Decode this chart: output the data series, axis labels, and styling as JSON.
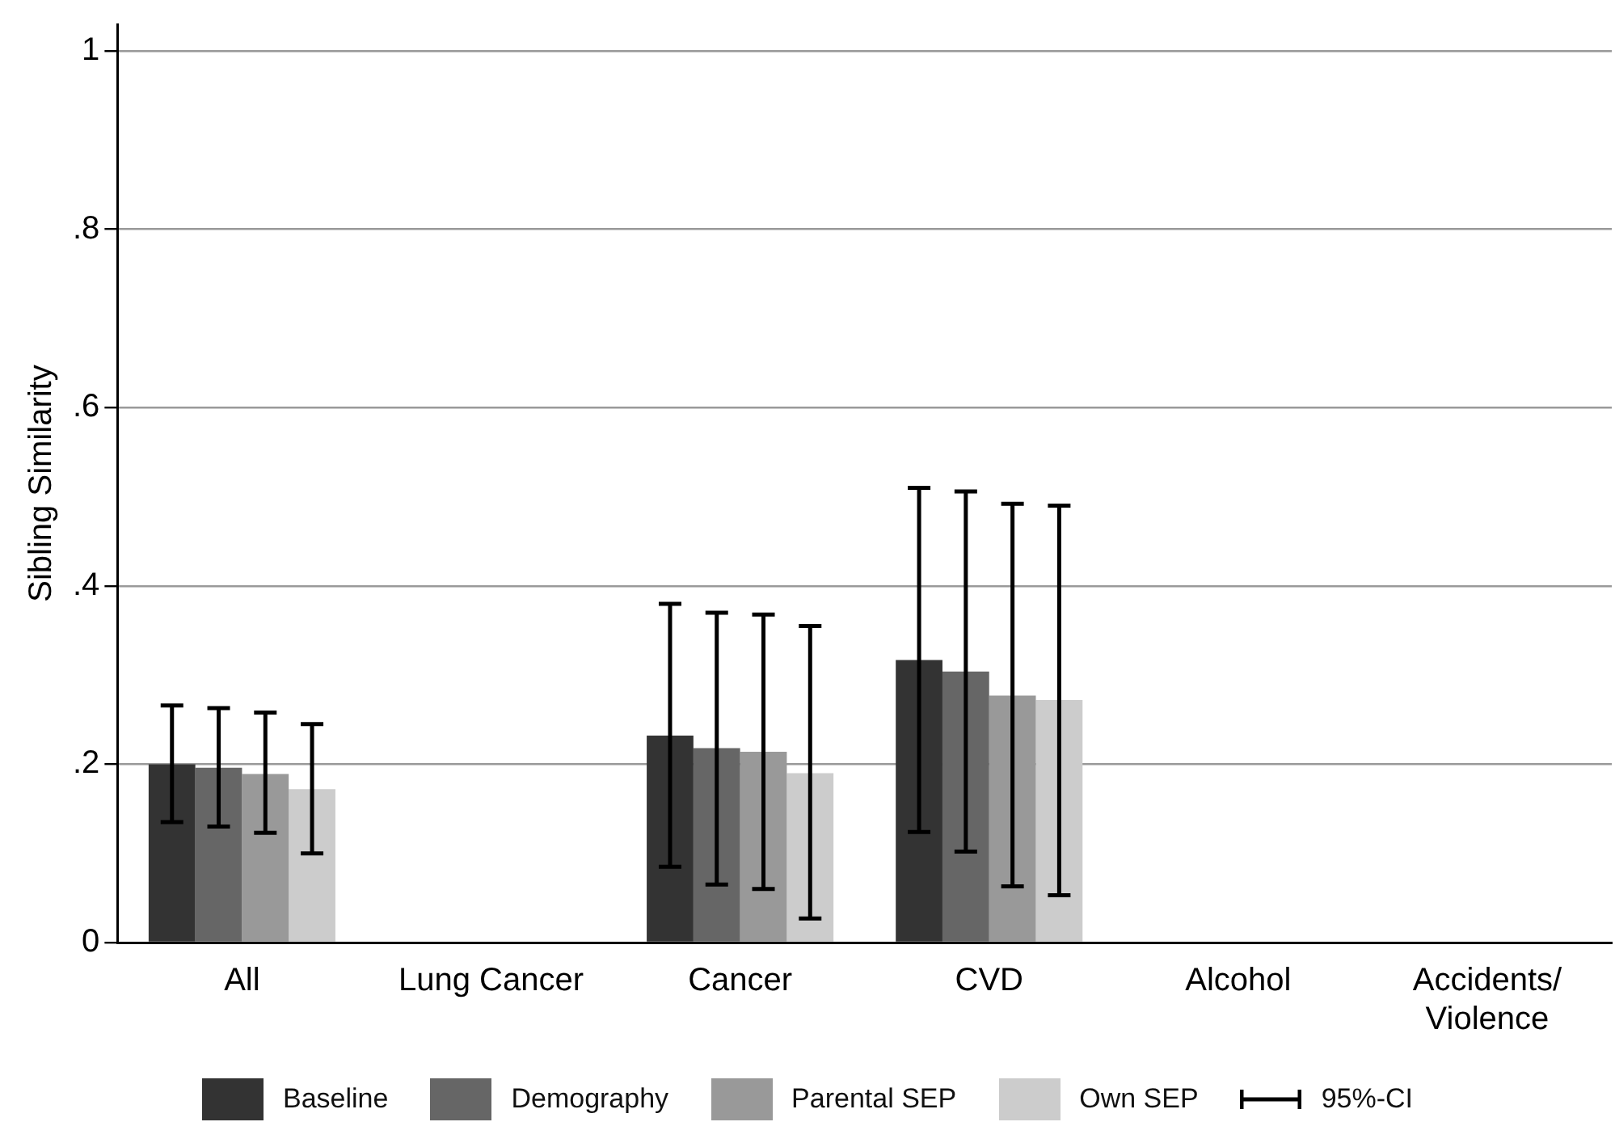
{
  "chart_data": {
    "type": "bar",
    "ylabel": "Sibling Similarity",
    "categories": [
      "All",
      "Lung Cancer",
      "Cancer",
      "CVD",
      "Alcohol",
      "Accidents/\nViolence"
    ],
    "series": [
      {
        "name": "Baseline",
        "color": "#333333",
        "values": [
          0.2,
          null,
          0.232,
          0.317,
          null,
          null
        ],
        "errors": [
          [
            0.135,
            0.266
          ],
          null,
          [
            0.085,
            0.38
          ],
          [
            0.124,
            0.51
          ],
          null,
          null
        ]
      },
      {
        "name": "Demography",
        "color": "#666666",
        "values": [
          0.196,
          null,
          0.218,
          0.304,
          null,
          null
        ],
        "errors": [
          [
            0.13,
            0.263
          ],
          null,
          [
            0.065,
            0.37
          ],
          [
            0.102,
            0.506
          ],
          null,
          null
        ]
      },
      {
        "name": "Parental SEP",
        "color": "#999999",
        "values": [
          0.189,
          null,
          0.214,
          0.277,
          null,
          null
        ],
        "errors": [
          [
            0.123,
            0.258
          ],
          null,
          [
            0.06,
            0.368
          ],
          [
            0.063,
            0.492
          ],
          null,
          null
        ]
      },
      {
        "name": "Own SEP",
        "color": "#cccccc",
        "values": [
          0.172,
          null,
          0.19,
          0.272,
          null,
          null
        ],
        "errors": [
          [
            0.1,
            0.245
          ],
          null,
          [
            0.027,
            0.355
          ],
          [
            0.053,
            0.49
          ],
          null,
          null
        ]
      }
    ],
    "ylim": [
      0,
      1.03
    ],
    "yticks": [
      {
        "value": 0,
        "label": "0"
      },
      {
        "value": 0.2,
        "label": ".2"
      },
      {
        "value": 0.4,
        "label": ".4"
      },
      {
        "value": 0.6,
        "label": ".6"
      },
      {
        "value": 0.8,
        "label": ".8"
      },
      {
        "value": 1,
        "label": "1"
      }
    ],
    "grid": "y",
    "legend": "bottom",
    "annotations": [
      "95%-CI"
    ]
  }
}
